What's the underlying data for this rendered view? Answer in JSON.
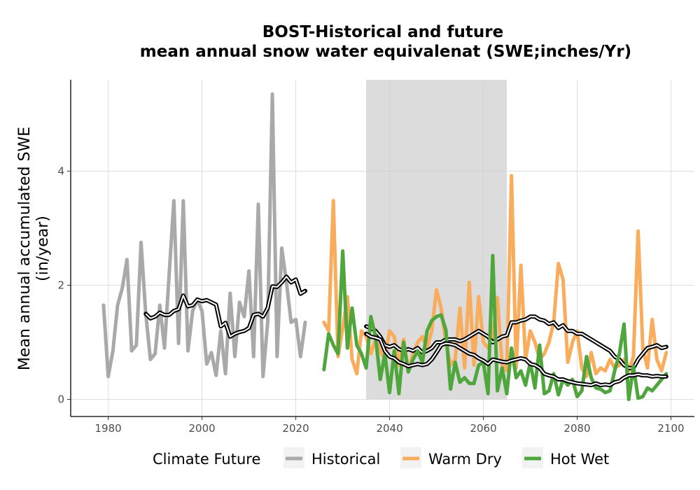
{
  "chart_data": {
    "type": "line",
    "title": "BOST-Historical and future",
    "subtitle": "mean annual snow water equivalenat (SWE;inches/Yr)",
    "ylabel_line1": "Mean annual accumulated SWE",
    "ylabel_line2": "(in/year)",
    "xlabel": "",
    "xlim": [
      1972,
      2105
    ],
    "ylim": [
      -0.3,
      5.6
    ],
    "x_ticks": [
      1980,
      2000,
      2020,
      2040,
      2060,
      2080,
      2100
    ],
    "y_ticks": [
      0,
      2,
      4
    ],
    "grid": true,
    "shaded_period": [
      2035,
      2065
    ],
    "legend": {
      "title": "Climate Future",
      "placement": "bottom",
      "entries": [
        {
          "label": "Historical",
          "color": "#a9a9a9"
        },
        {
          "label": "Warm Dry",
          "color": "#f8ac5c"
        },
        {
          "label": "Hot Wet",
          "color": "#4ea63c"
        }
      ]
    },
    "series": [
      {
        "name": "Historical",
        "color": "#a9a9a9",
        "x": [
          1979,
          1980,
          1981,
          1982,
          1983,
          1984,
          1985,
          1986,
          1987,
          1988,
          1989,
          1990,
          1991,
          1992,
          1993,
          1994,
          1995,
          1996,
          1997,
          1998,
          1999,
          2000,
          2001,
          2002,
          2003,
          2004,
          2005,
          2006,
          2007,
          2008,
          2009,
          2010,
          2011,
          2012,
          2013,
          2014,
          2015,
          2016,
          2017,
          2018,
          2019,
          2020,
          2021,
          2022
        ],
        "y": [
          1.65,
          0.4,
          0.85,
          1.65,
          1.95,
          2.45,
          0.85,
          0.95,
          2.75,
          1.5,
          0.7,
          0.8,
          1.65,
          0.9,
          2.2,
          3.48,
          0.98,
          3.48,
          0.85,
          1.55,
          1.75,
          1.55,
          0.62,
          0.82,
          0.42,
          1.2,
          0.45,
          1.86,
          0.75,
          1.7,
          1.45,
          2.25,
          0.75,
          3.42,
          0.4,
          1.35,
          5.35,
          0.75,
          2.65,
          2.05,
          1.35,
          1.4,
          0.75,
          1.35
        ]
      },
      {
        "name": "Historical rolling mean",
        "color": "#000000",
        "x": [
          1988,
          1989,
          1990,
          1991,
          1992,
          1993,
          1994,
          1995,
          1996,
          1997,
          1998,
          1999,
          2000,
          2001,
          2002,
          2003,
          2004,
          2005,
          2006,
          2007,
          2008,
          2009,
          2010,
          2011,
          2012,
          2013,
          2014,
          2015,
          2016,
          2017,
          2018,
          2019,
          2020,
          2021,
          2022
        ],
        "y": [
          1.5,
          1.42,
          1.45,
          1.52,
          1.48,
          1.48,
          1.55,
          1.58,
          1.82,
          1.63,
          1.65,
          1.75,
          1.72,
          1.74,
          1.7,
          1.66,
          1.28,
          1.34,
          1.1,
          1.15,
          1.18,
          1.2,
          1.25,
          1.48,
          1.5,
          1.45,
          1.6,
          1.98,
          1.97,
          2.05,
          2.15,
          2.05,
          2.1,
          1.85,
          1.9
        ]
      },
      {
        "name": "Warm Dry",
        "color": "#f8ac5c",
        "x": [
          2026,
          2027,
          2028,
          2029,
          2030,
          2031,
          2032,
          2033,
          2034,
          2035,
          2036,
          2037,
          2038,
          2039,
          2040,
          2041,
          2042,
          2043,
          2044,
          2045,
          2046,
          2047,
          2048,
          2049,
          2050,
          2051,
          2052,
          2053,
          2054,
          2055,
          2056,
          2057,
          2058,
          2059,
          2060,
          2061,
          2062,
          2063,
          2064,
          2065,
          2066,
          2067,
          2068,
          2069,
          2070,
          2071,
          2072,
          2073,
          2074,
          2075,
          2076,
          2077,
          2078,
          2079,
          2080,
          2081,
          2082,
          2083,
          2084,
          2085,
          2086,
          2087,
          2088,
          2089,
          2090,
          2091,
          2092,
          2093,
          2094,
          2095,
          2096,
          2097,
          2098,
          2099
        ],
        "y": [
          1.35,
          1.2,
          3.48,
          0.75,
          1.25,
          1.8,
          0.7,
          0.45,
          1.2,
          1.1,
          0.8,
          1.05,
          0.85,
          0.7,
          1.2,
          1.1,
          0.6,
          1.05,
          0.5,
          0.8,
          1.0,
          1.1,
          0.9,
          1.2,
          1.92,
          1.6,
          1.0,
          0.6,
          0.7,
          1.6,
          0.55,
          2.05,
          0.6,
          1.8,
          1.0,
          0.9,
          1.1,
          1.78,
          0.6,
          0.5,
          3.92,
          0.55,
          2.35,
          0.7,
          1.2,
          1.0,
          0.7,
          0.8,
          1.0,
          1.35,
          2.38,
          2.1,
          0.65,
          1.0,
          1.2,
          0.55,
          0.4,
          0.82,
          0.45,
          0.55,
          0.5,
          0.7,
          0.55,
          0.6,
          0.7,
          0.5,
          0.75,
          2.95,
          0.9,
          0.55,
          1.4,
          0.7,
          0.5,
          0.82
        ]
      },
      {
        "name": "Warm Dry rolling mean",
        "color": "#000000",
        "x": [
          2035,
          2036,
          2037,
          2038,
          2039,
          2040,
          2041,
          2042,
          2043,
          2044,
          2045,
          2046,
          2047,
          2048,
          2049,
          2050,
          2051,
          2052,
          2053,
          2054,
          2055,
          2056,
          2057,
          2058,
          2059,
          2060,
          2061,
          2062,
          2063,
          2064,
          2065,
          2066,
          2067,
          2068,
          2069,
          2070,
          2071,
          2072,
          2073,
          2074,
          2075,
          2076,
          2077,
          2078,
          2079,
          2080,
          2081,
          2082,
          2083,
          2084,
          2085,
          2086,
          2087,
          2088,
          2089,
          2090,
          2091,
          2092,
          2093,
          2094,
          2095,
          2096,
          2097,
          2098,
          2099
        ],
        "y": [
          1.28,
          1.25,
          1.2,
          1.1,
          0.95,
          0.92,
          0.95,
          0.88,
          0.85,
          0.88,
          0.85,
          0.9,
          0.82,
          0.85,
          0.9,
          1.0,
          1.0,
          1.05,
          1.05,
          1.05,
          1.02,
          1.05,
          1.1,
          1.15,
          1.2,
          1.15,
          1.1,
          1.0,
          1.05,
          1.1,
          1.12,
          1.35,
          1.35,
          1.38,
          1.4,
          1.45,
          1.45,
          1.4,
          1.38,
          1.32,
          1.35,
          1.25,
          1.3,
          1.2,
          1.2,
          1.15,
          1.15,
          1.1,
          1.05,
          1.0,
          0.95,
          0.9,
          0.85,
          0.75,
          0.7,
          0.6,
          0.55,
          0.55,
          0.7,
          0.8,
          0.9,
          0.92,
          0.95,
          0.9,
          0.92
        ]
      },
      {
        "name": "Hot Wet",
        "color": "#4ea63c",
        "x": [
          2026,
          2027,
          2028,
          2029,
          2030,
          2031,
          2032,
          2033,
          2034,
          2035,
          2036,
          2037,
          2038,
          2039,
          2040,
          2041,
          2042,
          2043,
          2044,
          2045,
          2046,
          2047,
          2048,
          2049,
          2050,
          2051,
          2052,
          2053,
          2054,
          2055,
          2056,
          2057,
          2058,
          2059,
          2060,
          2061,
          2062,
          2063,
          2064,
          2065,
          2066,
          2067,
          2068,
          2069,
          2070,
          2071,
          2072,
          2073,
          2074,
          2075,
          2076,
          2077,
          2078,
          2079,
          2080,
          2081,
          2082,
          2083,
          2084,
          2085,
          2086,
          2087,
          2088,
          2089,
          2090,
          2091,
          2092,
          2093,
          2094,
          2095,
          2096,
          2097,
          2098,
          2099
        ],
        "y": [
          0.52,
          1.15,
          0.95,
          0.8,
          2.6,
          0.9,
          1.6,
          0.95,
          0.8,
          0.55,
          1.45,
          1.1,
          0.35,
          0.8,
          0.12,
          0.85,
          0.1,
          1.0,
          0.48,
          0.7,
          0.85,
          0.65,
          1.2,
          1.38,
          1.45,
          1.48,
          1.22,
          0.18,
          0.65,
          0.3,
          0.38,
          0.28,
          0.28,
          0.6,
          0.65,
          0.1,
          2.52,
          0.15,
          0.55,
          0.1,
          0.9,
          0.38,
          0.5,
          0.25,
          0.65,
          0.2,
          0.95,
          0.1,
          0.15,
          0.45,
          0.08,
          0.35,
          0.25,
          0.35,
          0.05,
          0.15,
          0.75,
          0.38,
          0.2,
          0.18,
          0.12,
          0.15,
          0.5,
          0.8,
          1.32,
          0.0,
          0.58,
          0.02,
          0.05,
          0.2,
          0.15,
          0.25,
          0.35,
          0.45
        ]
      },
      {
        "name": "Hot Wet rolling mean",
        "color": "#000000",
        "x": [
          2035,
          2036,
          2037,
          2038,
          2039,
          2040,
          2041,
          2042,
          2043,
          2044,
          2045,
          2046,
          2047,
          2048,
          2049,
          2050,
          2051,
          2052,
          2053,
          2054,
          2055,
          2056,
          2057,
          2058,
          2059,
          2060,
          2061,
          2062,
          2063,
          2064,
          2065,
          2066,
          2067,
          2068,
          2069,
          2070,
          2071,
          2072,
          2073,
          2074,
          2075,
          2076,
          2077,
          2078,
          2079,
          2080,
          2081,
          2082,
          2083,
          2084,
          2085,
          2086,
          2087,
          2088,
          2089,
          2090,
          2091,
          2092,
          2093,
          2094,
          2095,
          2096,
          2097,
          2098,
          2099
        ],
        "y": [
          1.15,
          1.1,
          1.08,
          1.05,
          0.85,
          0.75,
          0.72,
          0.65,
          0.62,
          0.58,
          0.6,
          0.62,
          0.6,
          0.62,
          0.7,
          0.82,
          0.95,
          0.98,
          0.97,
          0.95,
          0.9,
          0.85,
          0.8,
          0.78,
          0.72,
          0.68,
          0.62,
          0.7,
          0.68,
          0.66,
          0.65,
          0.68,
          0.7,
          0.72,
          0.7,
          0.62,
          0.6,
          0.55,
          0.45,
          0.42,
          0.4,
          0.35,
          0.35,
          0.32,
          0.3,
          0.28,
          0.27,
          0.26,
          0.25,
          0.28,
          0.25,
          0.26,
          0.25,
          0.3,
          0.32,
          0.38,
          0.42,
          0.42,
          0.44,
          0.42,
          0.42,
          0.4,
          0.41,
          0.4,
          0.4
        ]
      }
    ]
  }
}
